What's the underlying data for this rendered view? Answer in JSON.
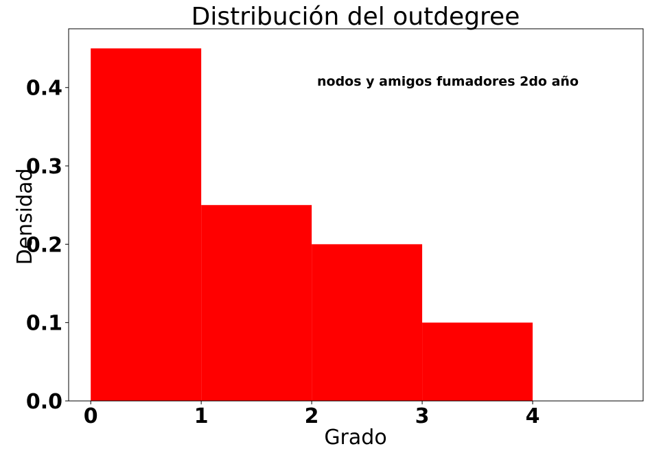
{
  "chart_data": {
    "type": "bar",
    "title": "Distribución del outdegree",
    "xlabel": "Grado",
    "ylabel": "Densidad",
    "annotation": "nodos y amigos fumadores 2do año",
    "bins": [
      {
        "x0": 0,
        "x1": 1,
        "value": 0.45
      },
      {
        "x0": 1,
        "x1": 2,
        "value": 0.25
      },
      {
        "x0": 2,
        "x1": 3,
        "value": 0.2
      },
      {
        "x0": 3,
        "x1": 4,
        "value": 0.1
      }
    ],
    "xlim": [
      -0.2,
      5.0
    ],
    "ylim": [
      0,
      0.475
    ],
    "xticks": [
      0,
      1,
      2,
      3,
      4
    ],
    "xtick_labels": [
      "0",
      "1",
      "2",
      "3",
      "4"
    ],
    "yticks": [
      0.0,
      0.1,
      0.2,
      0.3,
      0.4
    ],
    "ytick_labels": [
      "0.0",
      "0.1",
      "0.2",
      "0.3",
      "0.4"
    ],
    "bar_color": "#ff0000",
    "grid": false
  }
}
